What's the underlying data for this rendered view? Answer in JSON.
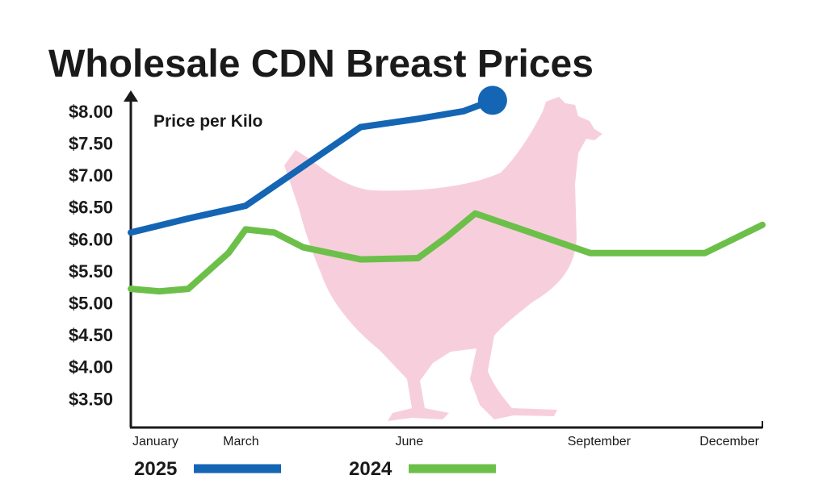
{
  "chart_data": {
    "type": "line",
    "title": "Wholesale CDN Breast Prices",
    "ylabel": "Price per Kilo",
    "xlabel": "",
    "ylim": [
      3.05,
      8.25
    ],
    "xlim": [
      1,
      12
    ],
    "y_ticks": [
      {
        "value": 8.0,
        "label": "$8.00"
      },
      {
        "value": 7.5,
        "label": "$7.50"
      },
      {
        "value": 7.0,
        "label": "$7.00"
      },
      {
        "value": 6.5,
        "label": "$6.50"
      },
      {
        "value": 6.0,
        "label": "$6.00"
      },
      {
        "value": 5.5,
        "label": "$5.50"
      },
      {
        "value": 5.0,
        "label": "$5.00"
      },
      {
        "value": 4.5,
        "label": "$4.50"
      },
      {
        "value": 4.0,
        "label": "$4.00"
      },
      {
        "value": 3.5,
        "label": "$3.50"
      }
    ],
    "x_ticks": [
      {
        "value": 1,
        "label": "January"
      },
      {
        "value": 3,
        "label": "March"
      },
      {
        "value": 6,
        "label": "June"
      },
      {
        "value": 9,
        "label": "September"
      },
      {
        "value": 12,
        "label": "December"
      }
    ],
    "series": [
      {
        "name": "2025",
        "color": "#1565b5",
        "end_marker": true,
        "points": [
          {
            "x": 1.0,
            "y": 6.1
          },
          {
            "x": 2.0,
            "y": 6.32
          },
          {
            "x": 3.0,
            "y": 6.52
          },
          {
            "x": 5.0,
            "y": 7.75
          },
          {
            "x": 6.0,
            "y": 7.88
          },
          {
            "x": 6.8,
            "y": 8.0
          },
          {
            "x": 7.3,
            "y": 8.17
          }
        ]
      },
      {
        "name": "2024",
        "color": "#6cc04a",
        "end_marker": false,
        "points": [
          {
            "x": 1.0,
            "y": 5.22
          },
          {
            "x": 1.5,
            "y": 5.18
          },
          {
            "x": 2.0,
            "y": 5.22
          },
          {
            "x": 2.7,
            "y": 5.78
          },
          {
            "x": 3.0,
            "y": 6.15
          },
          {
            "x": 3.5,
            "y": 6.1
          },
          {
            "x": 4.0,
            "y": 5.87
          },
          {
            "x": 5.0,
            "y": 5.68
          },
          {
            "x": 6.0,
            "y": 5.7
          },
          {
            "x": 6.5,
            "y": 6.03
          },
          {
            "x": 7.0,
            "y": 6.4
          },
          {
            "x": 9.0,
            "y": 5.78
          },
          {
            "x": 10.0,
            "y": 5.78
          },
          {
            "x": 11.0,
            "y": 5.78
          },
          {
            "x": 12.0,
            "y": 6.22
          }
        ]
      }
    ],
    "legend": {
      "placement": "bottom",
      "items": [
        {
          "label": "2025",
          "color": "#1565b5"
        },
        {
          "label": "2024",
          "color": "#6cc04a"
        }
      ]
    },
    "background_image": "hen-silhouette-icon",
    "background_image_color": "#f7cfdc",
    "grid": false
  }
}
